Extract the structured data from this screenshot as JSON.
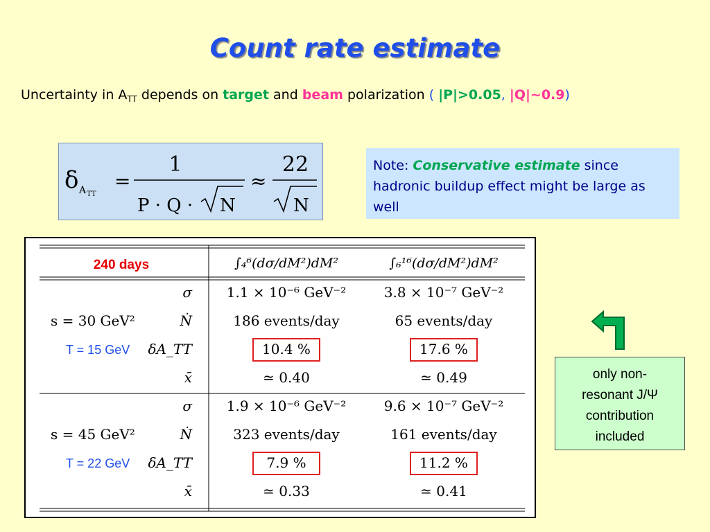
{
  "title": "Count rate estimate",
  "subtitle": {
    "prefix": "Uncertainty in A",
    "sub": "TT",
    "mid1": " depends on ",
    "target": "target",
    "and": " and ",
    "beam": "beam",
    "mid2": " polarization ",
    "open": "( ",
    "p_cond": "|P|>0.05",
    "comma": ", ",
    "q_cond": "|Q|~0.9",
    "close": ")"
  },
  "formula": {
    "delta": "δ",
    "sub": "A",
    "subsub": "TT",
    "eq": "=",
    "numerator": "1",
    "denominator": "P · Q ·",
    "sqrt_n": "N",
    "approx": "≈",
    "numerator2": "22",
    "sqrt_n2": "N"
  },
  "note": {
    "prefix": "Note: ",
    "emphasis": "Conservative estimate",
    "rest": " since hadronic buildup effect might be large as well"
  },
  "table": {
    "corner": "240 days",
    "headers": [
      "∫₄⁶(dσ/dM²)dM²",
      "∫₆¹⁶(dσ/dM²)dM²"
    ],
    "groups": [
      {
        "s_label": "s = 30 GeV²",
        "t_label": "T = 15 GeV",
        "rows": [
          {
            "sym": "σ",
            "v1": "1.1 × 10⁻⁶ GeV⁻²",
            "v2": "3.8 × 10⁻⁷ GeV⁻²"
          },
          {
            "sym": "Ṅ",
            "v1": "186 events/day",
            "v2": "65 events/day"
          },
          {
            "sym": "δA_TT",
            "v1": "10.4 %",
            "v2": "17.6 %"
          },
          {
            "sym": "x̄",
            "v1": "≃ 0.40",
            "v2": "≃ 0.49"
          }
        ]
      },
      {
        "s_label": "s = 45 GeV²",
        "t_label": "T = 22 GeV",
        "rows": [
          {
            "sym": "σ",
            "v1": "1.9 × 10⁻⁶ GeV⁻²",
            "v2": "9.6 × 10⁻⁷ GeV⁻²"
          },
          {
            "sym": "Ṅ",
            "v1": "323 events/day",
            "v2": "161 events/day"
          },
          {
            "sym": "δA_TT",
            "v1": "7.9 %",
            "v2": "11.2 %"
          },
          {
            "sym": "x̄",
            "v1": "≃ 0.33",
            "v2": "≃ 0.41"
          }
        ]
      }
    ]
  },
  "side_note": {
    "line1": "only non-",
    "line2": "resonant J/Ψ",
    "line3": "contribution",
    "line4": "included"
  },
  "colors": {
    "title": "#1f4ee8",
    "green": "#00a651",
    "pink": "#ff3399",
    "corner_red": "#e60000",
    "t_blue": "#1f4ee8",
    "highlight_box": "#e02020"
  },
  "icons": {
    "arrow": "arrow-up-left-icon"
  }
}
